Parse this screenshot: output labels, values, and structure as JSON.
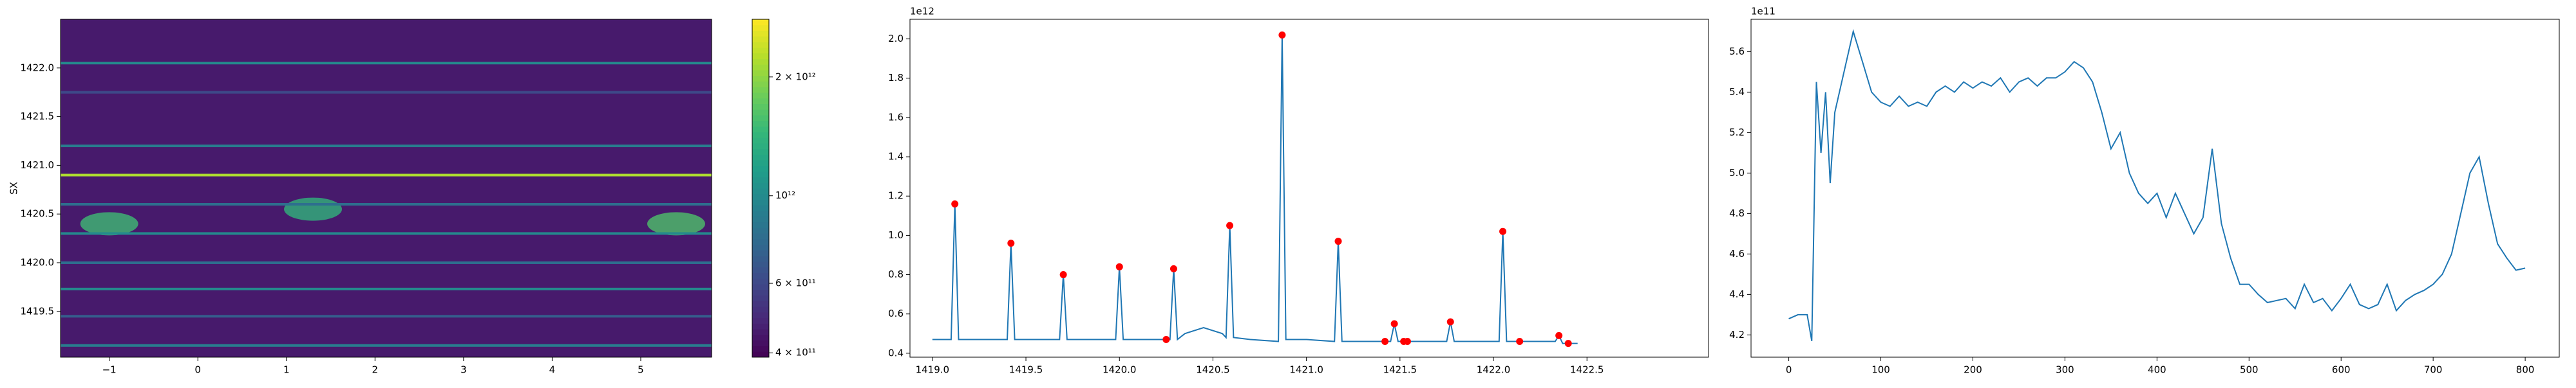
{
  "chart_data": [
    {
      "type": "heatmap",
      "y_label": "SX",
      "xlim": [
        -1.55,
        5.8
      ],
      "ylim": [
        1419.03,
        1422.5
      ],
      "xticks": [
        {
          "value": -1,
          "label": "−1"
        },
        0,
        1,
        2,
        3,
        4,
        5
      ],
      "yticks": [
        {
          "value": 1419.5,
          "label": "1419.5"
        },
        {
          "value": 1420,
          "label": "1420.0"
        },
        {
          "value": 1420.5,
          "label": "1420.5"
        },
        {
          "value": 1421,
          "label": "1421.0"
        },
        {
          "value": 1421.5,
          "label": "1421.5"
        },
        {
          "value": 1422,
          "label": "1422.0"
        }
      ],
      "clim": [
        390000000000,
        2800000000000
      ],
      "log_color": true,
      "cticks": [
        {
          "value": 400000000000,
          "label": "4 × 10¹¹"
        },
        {
          "value": 600000000000,
          "label": "6 × 10¹¹"
        },
        {
          "value": 1000000000000,
          "label": "10¹²"
        },
        {
          "value": 2000000000000,
          "label": "2 × 10¹²"
        }
      ],
      "base_value": 450000000000,
      "rows": [
        {
          "y": 1422.05,
          "value": 1000000000000
        },
        {
          "y": 1421.75,
          "value": 600000000000
        },
        {
          "y": 1421.2,
          "value": 900000000000
        },
        {
          "y": 1420.9,
          "value": 2200000000000
        },
        {
          "y": 1420.6,
          "value": 800000000000
        },
        {
          "y": 1420.3,
          "value": 1000000000000
        },
        {
          "y": 1420.0,
          "value": 800000000000
        },
        {
          "y": 1419.73,
          "value": 1000000000000
        },
        {
          "y": 1419.45,
          "value": 700000000000
        },
        {
          "y": 1419.15,
          "value": 900000000000
        }
      ],
      "spots": [
        {
          "x": -1.0,
          "y": 1420.4,
          "value": 1500000000000
        },
        {
          "x": 1.3,
          "y": 1420.55,
          "value": 1400000000000
        },
        {
          "x": 5.4,
          "y": 1420.4,
          "value": 1600000000000
        }
      ]
    },
    {
      "type": "line",
      "offset_text": "1e12",
      "xlim": [
        1418.88,
        1423.15
      ],
      "ylim": [
        0.38,
        2.1
      ],
      "xticks": [
        {
          "value": 1419,
          "label": "1419.0"
        },
        {
          "value": 1419.5,
          "label": "1419.5"
        },
        {
          "value": 1420,
          "label": "1420.0"
        },
        {
          "value": 1420.5,
          "label": "1420.5"
        },
        {
          "value": 1421,
          "label": "1421.0"
        },
        {
          "value": 1421.5,
          "label": "1421.5"
        },
        {
          "value": 1422,
          "label": "1422.0"
        },
        {
          "value": 1422.5,
          "label": "1422.5"
        }
      ],
      "yticks": [
        0.4,
        0.6,
        0.8,
        {
          "value": 1,
          "label": "1.0"
        },
        1.2,
        1.4,
        1.6,
        1.8,
        {
          "value": 2,
          "label": "2.0"
        }
      ],
      "series": [
        {
          "color": "#1f77b4",
          "marker": "line",
          "x": [
            1419.0,
            1419.1,
            1419.12,
            1419.14,
            1419.4,
            1419.42,
            1419.44,
            1419.68,
            1419.7,
            1419.72,
            1419.98,
            1420.0,
            1420.02,
            1420.27,
            1420.29,
            1420.31,
            1420.35,
            1420.45,
            1420.55,
            1420.57,
            1420.59,
            1420.61,
            1420.7,
            1420.85,
            1420.87,
            1420.89,
            1421.0,
            1421.15,
            1421.17,
            1421.19,
            1421.45,
            1421.47,
            1421.49,
            1421.75,
            1421.77,
            1421.79,
            1422.03,
            1422.05,
            1422.07,
            1422.33,
            1422.35,
            1422.37,
            1422.45
          ],
          "values": [
            0.47,
            0.47,
            1.16,
            0.47,
            0.47,
            0.96,
            0.47,
            0.47,
            0.8,
            0.47,
            0.47,
            0.84,
            0.47,
            0.47,
            0.83,
            0.47,
            0.5,
            0.53,
            0.5,
            0.48,
            1.05,
            0.48,
            0.47,
            0.46,
            2.02,
            0.47,
            0.47,
            0.46,
            0.97,
            0.46,
            0.46,
            0.55,
            0.46,
            0.46,
            0.56,
            0.46,
            0.46,
            1.02,
            0.46,
            0.46,
            0.49,
            0.45,
            0.45
          ]
        },
        {
          "color": "#ff0000",
          "marker": "dot",
          "x": [
            1419.12,
            1419.42,
            1419.7,
            1420.0,
            1420.25,
            1420.29,
            1420.59,
            1420.87,
            1421.17,
            1421.42,
            1421.47,
            1421.52,
            1421.54,
            1421.77,
            1422.05,
            1422.14,
            1422.35,
            1422.4
          ],
          "values": [
            1.16,
            0.96,
            0.8,
            0.84,
            0.47,
            0.83,
            1.05,
            2.02,
            0.97,
            0.46,
            0.55,
            0.46,
            0.46,
            0.56,
            1.02,
            0.46,
            0.49,
            0.45
          ]
        }
      ]
    },
    {
      "type": "line",
      "offset_text": "1e11",
      "xlim": [
        -41,
        837
      ],
      "ylim": [
        4.09,
        5.76
      ],
      "xticks": [
        0,
        100,
        200,
        300,
        400,
        500,
        600,
        700,
        800
      ],
      "yticks": [
        4.2,
        4.4,
        4.6,
        4.8,
        {
          "value": 5,
          "label": "5.0"
        },
        5.2,
        5.4,
        5.6
      ],
      "series": [
        {
          "color": "#1f77b4",
          "marker": "line",
          "x": [
            0,
            10,
            20,
            25,
            30,
            35,
            40,
            45,
            50,
            60,
            70,
            80,
            90,
            100,
            110,
            120,
            130,
            140,
            150,
            160,
            170,
            180,
            190,
            200,
            210,
            220,
            230,
            240,
            250,
            260,
            270,
            280,
            290,
            300,
            310,
            320,
            330,
            340,
            350,
            360,
            370,
            380,
            390,
            400,
            410,
            420,
            430,
            440,
            450,
            460,
            470,
            480,
            490,
            500,
            510,
            520,
            530,
            540,
            550,
            560,
            570,
            580,
            590,
            600,
            610,
            620,
            630,
            640,
            650,
            660,
            670,
            680,
            690,
            700,
            710,
            720,
            730,
            740,
            750,
            760,
            770,
            780,
            790,
            800
          ],
          "values": [
            4.28,
            4.3,
            4.3,
            4.17,
            5.45,
            5.1,
            5.4,
            4.95,
            5.3,
            5.5,
            5.7,
            5.55,
            5.4,
            5.35,
            5.33,
            5.38,
            5.33,
            5.35,
            5.33,
            5.4,
            5.43,
            5.4,
            5.45,
            5.42,
            5.45,
            5.43,
            5.47,
            5.4,
            5.45,
            5.47,
            5.43,
            5.47,
            5.47,
            5.5,
            5.55,
            5.52,
            5.45,
            5.3,
            5.12,
            5.2,
            5.0,
            4.9,
            4.85,
            4.9,
            4.78,
            4.9,
            4.8,
            4.7,
            4.78,
            5.12,
            4.75,
            4.58,
            4.45,
            4.45,
            4.4,
            4.36,
            4.37,
            4.38,
            4.33,
            4.45,
            4.36,
            4.38,
            4.32,
            4.38,
            4.45,
            4.35,
            4.33,
            4.35,
            4.45,
            4.32,
            4.37,
            4.4,
            4.42,
            4.45,
            4.5,
            4.6,
            4.8,
            5.0,
            5.08,
            4.85,
            4.65,
            4.58,
            4.52,
            4.53
          ]
        }
      ]
    }
  ]
}
